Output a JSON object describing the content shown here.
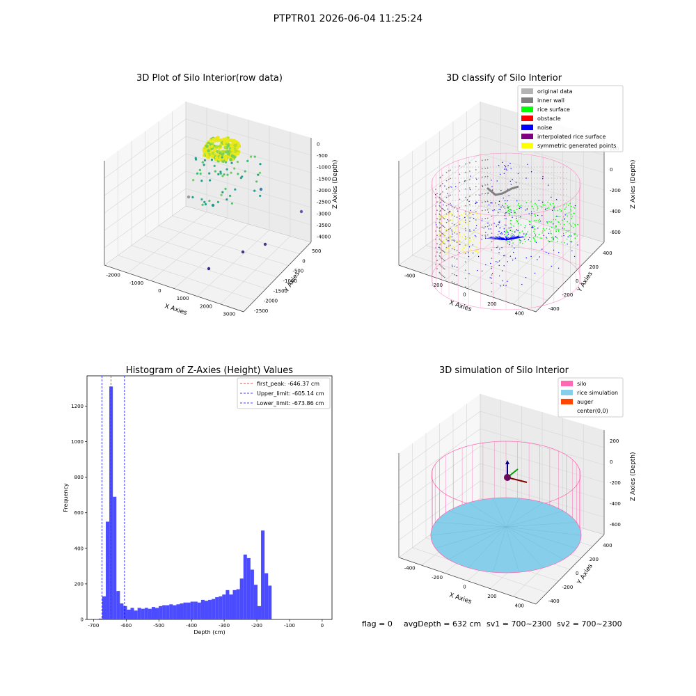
{
  "page_title": "PTPTR01 2026-06-04 11:25:24",
  "footer": {
    "flag": "flag = 0",
    "avg_depth": "avgDepth = 632 cm",
    "sv1": "sv1 = 700~2300",
    "sv2": "sv2 = 700~2300"
  },
  "colors": {
    "hist_bar": "#4B4BFF",
    "peak_line": "#ff0000",
    "limit_line": "#0000ff",
    "silo_line": "#ff69b4",
    "rice_fill": "#87ceeb",
    "auger": "#ff4500",
    "original": "#b4b4b4",
    "inner_wall": "#808080",
    "rice_surface": "#00ff00",
    "obstacle": "#ff0000",
    "noise": "#0000ff",
    "interp": "#800080",
    "symmetric": "#ffff00"
  },
  "chart_data": [
    {
      "type": "scatter",
      "title": "3D Plot of Silo Interior(row data)",
      "xlabel": "X Axies",
      "ylabel": "Y Axies",
      "zlabel": "Z Axies (Depth)",
      "x_ticks": [
        "-2000",
        "-1000",
        "0",
        "1000",
        "2000",
        "3000"
      ],
      "y_ticks": [
        "500",
        "0",
        "-500",
        "-1000",
        "-1500",
        "-2000",
        "-2500"
      ],
      "z_ticks": [
        "0",
        "-500",
        "-1000",
        "-1500",
        "-2000",
        "-2500",
        "-3000",
        "-3500",
        "-4000"
      ],
      "outliers": [
        {
          "x": 0,
          "y": -2500,
          "z": -3300
        },
        {
          "x": 2600,
          "y": -800,
          "z": -3200
        },
        {
          "x": 2800,
          "y": 0,
          "z": -3400
        },
        {
          "x": 3200,
          "y": 500,
          "z": -3200
        },
        {
          "x": -2000,
          "y": 500,
          "z": -1500
        },
        {
          "x": 2700,
          "y": 500,
          "z": -1800
        }
      ]
    },
    {
      "type": "scatter",
      "title": "3D classify of Silo Interior",
      "xlabel": "X Axies",
      "ylabel": "Y Axies",
      "zlabel": "Z Axies (Depth)",
      "x_ticks": [
        "-400",
        "-200",
        "0",
        "200",
        "400"
      ],
      "y_ticks": [
        "400",
        "200",
        "0",
        "-200",
        "-400"
      ],
      "z_ticks": [
        "200",
        "0",
        "-200",
        "-400",
        "-600"
      ],
      "legend": [
        "original data",
        "inner wall",
        "rice surface",
        "obstacle",
        "noise",
        "interpolated rice surface",
        "symmetric generated points"
      ],
      "legend_placement": "top-right"
    },
    {
      "type": "bar",
      "title": "Histogram of Z-Axies (Height) Values",
      "xlabel": "Depth (cm)",
      "ylabel": "Frequency",
      "xlim": [
        -720,
        30
      ],
      "ylim": [
        0,
        1370
      ],
      "x_ticks": [
        -700,
        -600,
        -500,
        -400,
        -300,
        -200,
        -100,
        0
      ],
      "y_ticks": [
        0,
        200,
        400,
        600,
        800,
        1000,
        1200
      ],
      "bin_start": -684,
      "bin_width": 10.8,
      "values": [
        5,
        130,
        550,
        1310,
        690,
        160,
        90,
        75,
        55,
        65,
        50,
        65,
        60,
        65,
        60,
        70,
        65,
        75,
        80,
        80,
        85,
        80,
        85,
        90,
        95,
        95,
        100,
        100,
        95,
        110,
        105,
        110,
        115,
        125,
        130,
        140,
        165,
        140,
        165,
        170,
        230,
        365,
        345,
        280,
        195,
        75,
        500,
        260,
        190
      ],
      "peak": -646.37,
      "upper_limit": -605.14,
      "lower_limit": -673.86,
      "legend": [
        "first_peak: -646.37 cm",
        "Upper_limit: -605.14 cm",
        "Lower_limit: -673.86 cm"
      ],
      "legend_placement": "top-right",
      "grid": false
    },
    {
      "type": "scatter",
      "title": "3D simulation of Silo Interior",
      "xlabel": "X Axies",
      "ylabel": "Y Axies",
      "zlabel": "Z Axies (Depth)",
      "x_ticks": [
        "-400",
        "-200",
        "0",
        "200",
        "400"
      ],
      "y_ticks": [
        "400",
        "200",
        "0",
        "-200",
        "-400"
      ],
      "z_ticks": [
        "200",
        "0",
        "-200",
        "-400",
        "-600"
      ],
      "legend": [
        "silo",
        "rice simulation",
        "auger",
        "center(0,0)"
      ],
      "legend_placement": "top-right",
      "silo_radius": 400,
      "silo_top": 200,
      "silo_bottom": -632
    }
  ]
}
